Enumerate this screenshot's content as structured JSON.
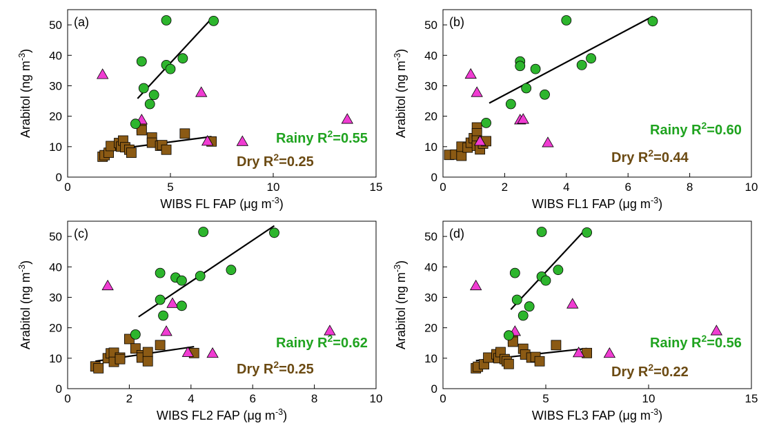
{
  "colors": {
    "rainy": "#2db52d",
    "dry": "#8b5a14",
    "other": "#f03cd2",
    "axis": "#000000",
    "rainy_text": "#1fa31f",
    "dry_text": "#6b4a12"
  },
  "chart_data": [
    {
      "type": "scatter",
      "panel_label": "(a)",
      "xlabel": "WIBS FL FAP (μg m⁻³)",
      "ylabel": "Arabitol (ng m⁻³)",
      "xlim": [
        0,
        15
      ],
      "ylim": [
        0,
        55
      ],
      "xticks": [
        0,
        5,
        10,
        15
      ],
      "yticks": [
        0,
        10,
        20,
        30,
        40,
        50
      ],
      "annotations": {
        "rainy": "Rainy R²=0.55",
        "dry": "Dry R²=0.25"
      },
      "series": [
        {
          "marker": "circle",
          "group": "rainy",
          "points": [
            [
              3.3,
              17.5
            ],
            [
              3.6,
              38
            ],
            [
              3.7,
              29.2
            ],
            [
              4.0,
              24
            ],
            [
              4.2,
              27
            ],
            [
              4.8,
              51.5
            ],
            [
              4.8,
              36.8
            ],
            [
              5.0,
              35.5
            ],
            [
              5.6,
              39
            ],
            [
              7.1,
              51.3
            ]
          ]
        },
        {
          "marker": "square",
          "group": "dry",
          "points": [
            [
              1.7,
              6.7
            ],
            [
              1.8,
              7.2
            ],
            [
              2.0,
              8.0
            ],
            [
              2.1,
              10.2
            ],
            [
              2.5,
              11.2
            ],
            [
              2.6,
              10.0
            ],
            [
              2.7,
              12.0
            ],
            [
              2.8,
              9.8
            ],
            [
              3.0,
              9.0
            ],
            [
              3.1,
              8.0
            ],
            [
              3.6,
              16.3
            ],
            [
              3.6,
              15.4
            ],
            [
              4.1,
              13.0
            ],
            [
              4.1,
              11.3
            ],
            [
              4.5,
              10.3
            ],
            [
              4.6,
              10.5
            ],
            [
              4.8,
              9.0
            ],
            [
              5.7,
              14.3
            ],
            [
              7.0,
              11.7
            ]
          ]
        },
        {
          "marker": "triangle",
          "group": "other",
          "points": [
            [
              1.7,
              33.7
            ],
            [
              3.6,
              18.8
            ],
            [
              6.5,
              27.8
            ],
            [
              6.8,
              11.8
            ],
            [
              8.5,
              11.7
            ],
            [
              13.6,
              19.0
            ]
          ]
        }
      ],
      "fits": [
        {
          "group": "rainy",
          "x": [
            3.4,
            7.1
          ],
          "y": [
            25.8,
            52.8
          ]
        },
        {
          "group": "dry",
          "x": [
            1.7,
            7.0
          ],
          "y": [
            8.6,
            13.3
          ]
        }
      ]
    },
    {
      "type": "scatter",
      "panel_label": "(b)",
      "xlabel": "WIBS FL1 FAP (μg m⁻³)",
      "ylabel": "Arabitol (ng m⁻³)",
      "xlim": [
        0,
        10
      ],
      "ylim": [
        0,
        55
      ],
      "xticks": [
        0,
        2,
        4,
        6,
        8,
        10
      ],
      "yticks": [
        0,
        10,
        20,
        30,
        40,
        50
      ],
      "annotations": {
        "rainy": "Rainy R²=0.60",
        "dry": "Dry R²=0.44"
      },
      "series": [
        {
          "marker": "circle",
          "group": "rainy",
          "points": [
            [
              1.4,
              17.8
            ],
            [
              2.2,
              24
            ],
            [
              2.5,
              38
            ],
            [
              2.5,
              36.5
            ],
            [
              2.7,
              29.2
            ],
            [
              3.0,
              35.5
            ],
            [
              3.3,
              27.1
            ],
            [
              4.0,
              51.5
            ],
            [
              4.5,
              36.8
            ],
            [
              4.8,
              39
            ],
            [
              6.8,
              51.2
            ]
          ]
        },
        {
          "marker": "square",
          "group": "dry",
          "points": [
            [
              0.2,
              7.3
            ],
            [
              0.4,
              7.4
            ],
            [
              0.6,
              7.0
            ],
            [
              0.6,
              10.0
            ],
            [
              0.8,
              9.7
            ],
            [
              0.9,
              11.3
            ],
            [
              1.0,
              12.8
            ],
            [
              1.1,
              16.3
            ],
            [
              1.1,
              14.4
            ],
            [
              1.1,
              12.0
            ],
            [
              1.1,
              10.3
            ],
            [
              1.2,
              9.1
            ],
            [
              1.3,
              11.5
            ],
            [
              1.3,
              11.0
            ],
            [
              1.4,
              11.8
            ]
          ]
        },
        {
          "marker": "triangle",
          "group": "other",
          "points": [
            [
              0.9,
              33.8
            ],
            [
              1.1,
              27.8
            ],
            [
              1.2,
              11.8
            ],
            [
              2.5,
              18.8
            ],
            [
              2.6,
              19.0
            ],
            [
              3.4,
              11.3
            ]
          ]
        }
      ],
      "fits": [
        {
          "group": "rainy",
          "x": [
            1.5,
            6.8
          ],
          "y": [
            24.3,
            52.8
          ]
        },
        {
          "group": "dry",
          "x": [
            0.2,
            1.4
          ],
          "y": [
            7.5,
            13.0
          ]
        }
      ]
    },
    {
      "type": "scatter",
      "panel_label": "(c)",
      "xlabel": "WIBS FL2 FAP (μg m⁻³)",
      "ylabel": "Arabitol (ng m⁻³)",
      "xlim": [
        0,
        10
      ],
      "ylim": [
        0,
        55
      ],
      "xticks": [
        0,
        2,
        4,
        6,
        8,
        10
      ],
      "yticks": [
        0,
        10,
        20,
        30,
        40,
        50
      ],
      "annotations": {
        "rainy": "Rainy R²=0.62",
        "dry": "Dry R²=0.25"
      },
      "series": [
        {
          "marker": "circle",
          "group": "rainy",
          "points": [
            [
              2.2,
              17.8
            ],
            [
              3.0,
              38
            ],
            [
              3.0,
              29.2
            ],
            [
              3.1,
              24
            ],
            [
              3.5,
              36.5
            ],
            [
              3.7,
              35.5
            ],
            [
              3.7,
              27.2
            ],
            [
              4.3,
              37
            ],
            [
              4.4,
              51.5
            ],
            [
              5.3,
              39
            ],
            [
              6.7,
              51.2
            ]
          ]
        },
        {
          "marker": "square",
          "group": "dry",
          "points": [
            [
              0.9,
              7.3
            ],
            [
              1.0,
              6.7
            ],
            [
              1.3,
              10.0
            ],
            [
              1.4,
              11.6
            ],
            [
              1.5,
              11.8
            ],
            [
              1.5,
              8.8
            ],
            [
              1.7,
              10.2
            ],
            [
              1.7,
              9.7
            ],
            [
              2.0,
              16.3
            ],
            [
              2.2,
              13.2
            ],
            [
              2.4,
              11.0
            ],
            [
              2.4,
              10.2
            ],
            [
              2.6,
              12.0
            ],
            [
              2.6,
              9.0
            ],
            [
              3.0,
              14.3
            ],
            [
              4.1,
              11.7
            ]
          ]
        },
        {
          "marker": "triangle",
          "group": "other",
          "points": [
            [
              1.3,
              33.8
            ],
            [
              3.2,
              18.8
            ],
            [
              3.4,
              28.0
            ],
            [
              3.9,
              11.9
            ],
            [
              4.7,
              11.6
            ],
            [
              8.5,
              19.0
            ]
          ]
        }
      ],
      "fits": [
        {
          "group": "rainy",
          "x": [
            2.3,
            6.7
          ],
          "y": [
            23.6,
            53.5
          ]
        },
        {
          "group": "dry",
          "x": [
            0.9,
            4.1
          ],
          "y": [
            9.0,
            13.8
          ]
        }
      ]
    },
    {
      "type": "scatter",
      "panel_label": "(d)",
      "xlabel": "WIBS FL3 FAP (μg m⁻³)",
      "ylabel": "Arabitol (ng m⁻³)",
      "xlim": [
        0,
        15
      ],
      "ylim": [
        0,
        55
      ],
      "xticks": [
        0,
        5,
        10,
        15
      ],
      "yticks": [
        0,
        10,
        20,
        30,
        40,
        50
      ],
      "annotations": {
        "rainy": "Rainy R²=0.56",
        "dry": "Dry R²=0.22"
      },
      "series": [
        {
          "marker": "circle",
          "group": "rainy",
          "points": [
            [
              3.2,
              17.5
            ],
            [
              3.5,
              38
            ],
            [
              3.6,
              29.2
            ],
            [
              3.9,
              24
            ],
            [
              4.2,
              27
            ],
            [
              4.8,
              51.5
            ],
            [
              4.8,
              36.8
            ],
            [
              5.0,
              35.5
            ],
            [
              5.6,
              39
            ],
            [
              7.0,
              51.3
            ]
          ]
        },
        {
          "marker": "square",
          "group": "dry",
          "points": [
            [
              1.6,
              6.7
            ],
            [
              1.7,
              7.2
            ],
            [
              2.0,
              8.0
            ],
            [
              2.2,
              10.2
            ],
            [
              2.6,
              11.3
            ],
            [
              2.7,
              10.0
            ],
            [
              2.8,
              12.0
            ],
            [
              3.0,
              9.7
            ],
            [
              3.1,
              9.0
            ],
            [
              3.2,
              8.1
            ],
            [
              3.4,
              16.3
            ],
            [
              3.4,
              15.4
            ],
            [
              3.9,
              13.1
            ],
            [
              4.0,
              11.2
            ],
            [
              4.3,
              10.2
            ],
            [
              4.5,
              10.4
            ],
            [
              4.7,
              9.0
            ],
            [
              5.5,
              14.3
            ],
            [
              7.0,
              11.7
            ]
          ]
        },
        {
          "marker": "triangle",
          "group": "other",
          "points": [
            [
              1.6,
              33.8
            ],
            [
              3.5,
              18.8
            ],
            [
              6.3,
              27.8
            ],
            [
              6.6,
              11.8
            ],
            [
              8.1,
              11.6
            ],
            [
              13.3,
              19.0
            ]
          ]
        }
      ],
      "fits": [
        {
          "group": "rainy",
          "x": [
            3.3,
            7.0
          ],
          "y": [
            26.0,
            52.8
          ]
        },
        {
          "group": "dry",
          "x": [
            1.6,
            7.0
          ],
          "y": [
            9.2,
            13.2
          ]
        }
      ]
    }
  ]
}
